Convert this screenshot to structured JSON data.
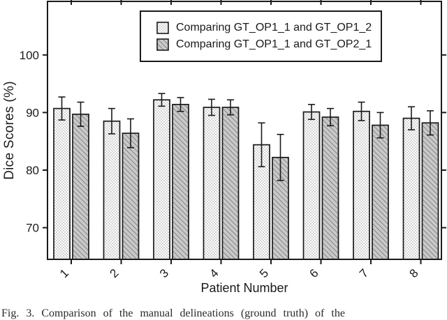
{
  "figure": {
    "caption": "Fig. 3.  Comparison  of  the  manual  delineations  (ground  truth)  of  the"
  },
  "chart_data": {
    "type": "bar",
    "title": "",
    "xlabel": "Patient Number",
    "ylabel": "Dice Scores (%)",
    "categories": [
      "1",
      "2",
      "3",
      "4",
      "5",
      "6",
      "7",
      "8"
    ],
    "yticks": [
      70,
      80,
      90,
      100
    ],
    "ylim": [
      64.5,
      109.3
    ],
    "grid": false,
    "legend_position": "top-center-inside",
    "error_bars": true,
    "series": [
      {
        "name": "Comparing GT_OP1_1 and GT_OP1_2",
        "pattern": "checker",
        "values": [
          90.7,
          88.5,
          92.2,
          90.9,
          84.4,
          90.1,
          90.2,
          89.0
        ],
        "errors": [
          2.0,
          2.2,
          1.1,
          1.4,
          3.8,
          1.3,
          1.6,
          2.0
        ]
      },
      {
        "name": "Comparing GT_OP1_1 and GT_OP2_1",
        "pattern": "diagonal-hatch",
        "values": [
          89.7,
          86.4,
          91.4,
          90.9,
          82.2,
          89.2,
          87.8,
          88.2
        ],
        "errors": [
          2.1,
          2.5,
          1.2,
          1.3,
          4.0,
          1.5,
          2.2,
          2.1
        ]
      }
    ]
  },
  "colors": {
    "axis": "#1a1a1a",
    "bar_outline": "#1a1a1a",
    "checker_dot": "#d4d4d4",
    "checker_bg": "#ffffff",
    "hatch_bg": "#c9c9c9",
    "hatch_line": "#7d7d7d",
    "error_bar": "#1a1a1a",
    "background": "#ffffff"
  }
}
